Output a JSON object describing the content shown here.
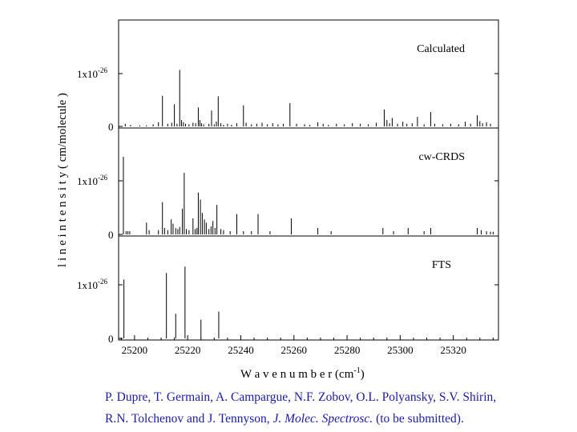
{
  "chart_data": {
    "type": "bar",
    "xlabel": "W a v e n u m b e r (c",
    "xlabel_unit": "m",
    "xlabel_exp": "-1",
    "xlabel_close": ")",
    "ylabel": "l i n e   i n t e n s i t y  ( cm/molecule )",
    "xlim": [
      25194,
      25337
    ],
    "x_ticks": [
      25200,
      25220,
      25240,
      25260,
      25280,
      25300,
      25320
    ],
    "panels": [
      {
        "name": "Calculated",
        "ylim": [
          0,
          2.0
        ],
        "ytick_top_mantissa": "1x10",
        "ytick_top_exp": "-26",
        "ytick_bottom": "0",
        "lines": [
          [
            25196.5,
            0.05
          ],
          [
            25198.5,
            0.03
          ],
          [
            25202,
            0.02
          ],
          [
            25204.5,
            0.02
          ],
          [
            25207,
            0.04
          ],
          [
            25209,
            0.08
          ],
          [
            25210.5,
            0.58
          ],
          [
            25212.5,
            0.05
          ],
          [
            25214,
            0.07
          ],
          [
            25215,
            0.42
          ],
          [
            25216,
            0.05
          ],
          [
            25217,
            1.07
          ],
          [
            25217.7,
            0.12
          ],
          [
            25218.4,
            0.08
          ],
          [
            25219.2,
            0.05
          ],
          [
            25220.5,
            0.04
          ],
          [
            25222,
            0.07
          ],
          [
            25223,
            0.06
          ],
          [
            25224,
            0.36
          ],
          [
            25224.6,
            0.12
          ],
          [
            25225.2,
            0.06
          ],
          [
            25226,
            0.04
          ],
          [
            25228,
            0.05
          ],
          [
            25229,
            0.3
          ],
          [
            25230,
            0.04
          ],
          [
            25230.8,
            0.09
          ],
          [
            25231.5,
            0.57
          ],
          [
            25232.5,
            0.06
          ],
          [
            25233.5,
            0.03
          ],
          [
            25235,
            0.05
          ],
          [
            25236.5,
            0.03
          ],
          [
            25238.5,
            0.06
          ],
          [
            25241,
            0.4
          ],
          [
            25242,
            0.07
          ],
          [
            25244,
            0.04
          ],
          [
            25246,
            0.05
          ],
          [
            25248,
            0.07
          ],
          [
            25250,
            0.04
          ],
          [
            25252,
            0.06
          ],
          [
            25254,
            0.04
          ],
          [
            25256,
            0.05
          ],
          [
            25258.5,
            0.44
          ],
          [
            25261,
            0.05
          ],
          [
            25264,
            0.04
          ],
          [
            25266,
            0.03
          ],
          [
            25269,
            0.08
          ],
          [
            25271,
            0.05
          ],
          [
            25273,
            0.03
          ],
          [
            25276,
            0.05
          ],
          [
            25279,
            0.04
          ],
          [
            25282,
            0.06
          ],
          [
            25285,
            0.05
          ],
          [
            25288,
            0.04
          ],
          [
            25291,
            0.07
          ],
          [
            25294,
            0.32
          ],
          [
            25295,
            0.12
          ],
          [
            25296,
            0.06
          ],
          [
            25297,
            0.16
          ],
          [
            25299,
            0.05
          ],
          [
            25301,
            0.09
          ],
          [
            25302.5,
            0.05
          ],
          [
            25304.5,
            0.06
          ],
          [
            25306.5,
            0.18
          ],
          [
            25309,
            0.04
          ],
          [
            25311.5,
            0.27
          ],
          [
            25313,
            0.05
          ],
          [
            25316,
            0.04
          ],
          [
            25319,
            0.05
          ],
          [
            25322,
            0.04
          ],
          [
            25324.5,
            0.09
          ],
          [
            25326.5,
            0.05
          ],
          [
            25329,
            0.21
          ],
          [
            25330,
            0.1
          ],
          [
            25331,
            0.06
          ],
          [
            25332.5,
            0.08
          ],
          [
            25334,
            0.05
          ]
        ]
      },
      {
        "name": "cw-CRDS",
        "ylim": [
          0,
          1.5
        ],
        "ytick_top_mantissa": "1x10",
        "ytick_top_exp": "-26",
        "ytick_bottom": "0",
        "lines": [
          [
            25195.8,
            1.45
          ],
          [
            25196.8,
            0.06
          ],
          [
            25197.5,
            0.06
          ],
          [
            25198.2,
            0.06
          ],
          [
            25204.5,
            0.22
          ],
          [
            25205.5,
            0.08
          ],
          [
            25209,
            0.08
          ],
          [
            25210.5,
            0.6
          ],
          [
            25211.3,
            0.12
          ],
          [
            25212.5,
            0.08
          ],
          [
            25213.8,
            0.28
          ],
          [
            25214.5,
            0.2
          ],
          [
            25215.5,
            0.12
          ],
          [
            25216.3,
            0.1
          ],
          [
            25217,
            0.14
          ],
          [
            25218,
            0.48
          ],
          [
            25218.7,
            1.15
          ],
          [
            25219.5,
            0.1
          ],
          [
            25220.5,
            0.08
          ],
          [
            25222,
            0.3
          ],
          [
            25222.8,
            0.1
          ],
          [
            25223.5,
            0.12
          ],
          [
            25224,
            0.78
          ],
          [
            25224.8,
            0.65
          ],
          [
            25225.5,
            0.4
          ],
          [
            25226.3,
            0.28
          ],
          [
            25227,
            0.22
          ],
          [
            25228,
            0.1
          ],
          [
            25228.8,
            0.15
          ],
          [
            25229.5,
            0.25
          ],
          [
            25230.3,
            0.12
          ],
          [
            25231,
            0.55
          ],
          [
            25232.5,
            0.1
          ],
          [
            25233.5,
            0.08
          ],
          [
            25236,
            0.06
          ],
          [
            25238.5,
            0.38
          ],
          [
            25241,
            0.06
          ],
          [
            25244,
            0.06
          ],
          [
            25246.5,
            0.38
          ],
          [
            25251,
            0.06
          ],
          [
            25259,
            0.3
          ],
          [
            25269,
            0.12
          ],
          [
            25274,
            0.06
          ],
          [
            25293.5,
            0.12
          ],
          [
            25297.5,
            0.06
          ],
          [
            25303,
            0.12
          ],
          [
            25309,
            0.06
          ],
          [
            25311.5,
            0.12
          ],
          [
            25329,
            0.12
          ],
          [
            25330.5,
            0.08
          ],
          [
            25332.5,
            0.06
          ],
          [
            25334,
            0.05
          ],
          [
            25335,
            0.05
          ]
        ]
      },
      {
        "name": "FTS",
        "ylim": [
          0,
          1.5
        ],
        "ytick_top_mantissa": "1x10",
        "ytick_top_exp": "-26",
        "ytick_bottom": "0",
        "lines": [
          [
            25196,
            1.1
          ],
          [
            25212,
            1.22
          ],
          [
            25215.5,
            0.46
          ],
          [
            25219,
            1.34
          ],
          [
            25225,
            0.35
          ],
          [
            25231.7,
            0.5
          ]
        ]
      }
    ]
  },
  "citation": {
    "line1": "P. Dupre, T. Germain, A. Campargue, N.F. Zobov, O.L. Polyansky, S.V. Shirin,",
    "line2_start": "R.N. Tolchenov  and J. Tennyson,",
    "line2_journal": "J. Molec. Spectrosc.",
    "line2_end": "(to be submitted)."
  }
}
